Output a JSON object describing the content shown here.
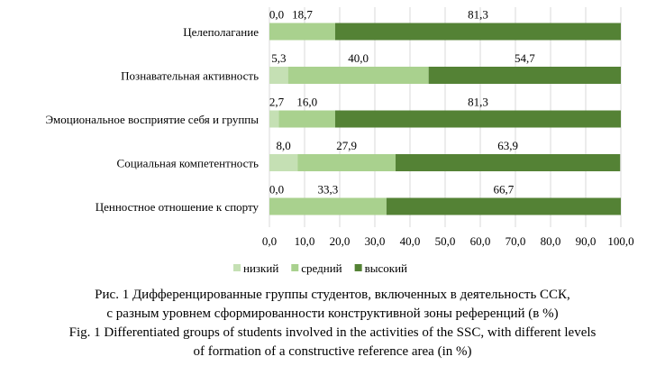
{
  "chart_data": {
    "type": "bar",
    "orientation": "horizontal-stacked",
    "categories": [
      "Целеполагание",
      "Познавательная активность",
      "Эмоциональное восприятие себя и группы",
      "Социальная компетентность",
      "Ценностное отношение к спорту"
    ],
    "series": [
      {
        "name": "низкий",
        "color": "#c5e0b4",
        "values": [
          0.0,
          5.3,
          2.7,
          8.0,
          0.0
        ],
        "labels": [
          "0,0",
          "5,3",
          "2,7",
          "8,0",
          "0,0"
        ]
      },
      {
        "name": "средний",
        "color": "#a9d18e",
        "values": [
          18.7,
          40.0,
          16.0,
          27.9,
          33.3
        ],
        "labels": [
          "18,7",
          "40,0",
          "16,0",
          "27,9",
          "33,3"
        ]
      },
      {
        "name": "высокий",
        "color": "#548235",
        "values": [
          81.3,
          54.7,
          81.3,
          63.9,
          66.7
        ],
        "labels": [
          "81,3",
          "54,7",
          "81,3",
          "63,9",
          "66,7"
        ]
      }
    ],
    "xlim": [
      0,
      100
    ],
    "xticks": [
      "0,0",
      "10,0",
      "20,0",
      "30,0",
      "40,0",
      "50,0",
      "60,0",
      "70,0",
      "80,0",
      "90,0",
      "100,0"
    ],
    "grid": true,
    "legend": "bottom"
  },
  "caption": {
    "ru_line1": "Рис. 1 Дифференцированные группы студентов, включенных в деятельность ССК,",
    "ru_line2": "с разным уровнем сформированности конструктивной зоны референций (в %)",
    "en_line1": "Fig. 1 Differentiated groups of students involved in the activities of the SSC, with different levels",
    "en_line2": "of formation of a constructive reference area (in %)"
  }
}
